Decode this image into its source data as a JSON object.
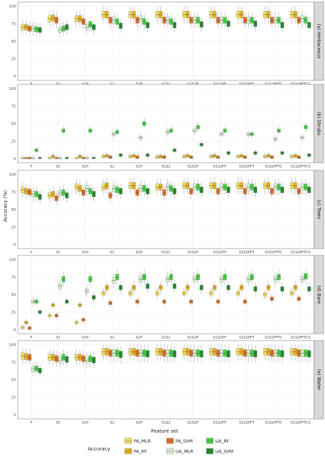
{
  "chart_data": {
    "type": "box",
    "xlabel": "Feature set",
    "ylabel": "Accuracy (%)",
    "ylim": [
      0,
      100
    ],
    "yticks": [
      0,
      25,
      50,
      75,
      100
    ],
    "categories": [
      "P",
      "S1",
      "S1P",
      "S2",
      "S2P",
      "S1S2",
      "S1S2P",
      "S1S2PF",
      "S1S2PFT",
      "S1S2PFTC",
      "S1S2PFTCS"
    ],
    "legend": {
      "title": "Accuracy",
      "position": "bottom",
      "entries": [
        "PA_MLR",
        "PA_SVM",
        "UA_RF",
        "PA_RF",
        "UA_MLR",
        "UA_SVM"
      ]
    },
    "series_colors": {
      "PA_MLR": "#f6e05a",
      "PA_RF": "#e8b21c",
      "PA_SVM": "#e06c1d",
      "UA_MLR": "#d7f0d2",
      "UA_RF": "#3ed43e",
      "UA_SVM": "#1e8c2a"
    },
    "series_order": [
      "PA_MLR",
      "PA_RF",
      "PA_SVM",
      "UA_MLR",
      "UA_RF",
      "UA_SVM"
    ],
    "grid": true,
    "facets": [
      {
        "label": "(a) Herbaceous",
        "medians": [
          [
            70,
            70,
            68,
            68,
            67,
            66
          ],
          [
            82,
            83,
            80,
            66,
            68,
            70
          ],
          [
            82,
            82,
            78,
            70,
            74,
            70
          ],
          [
            88,
            88,
            80,
            80,
            78,
            72
          ],
          [
            88,
            88,
            80,
            82,
            78,
            73
          ],
          [
            88,
            88,
            80,
            80,
            78,
            73
          ],
          [
            88,
            88,
            80,
            80,
            80,
            74
          ],
          [
            88,
            88,
            80,
            80,
            80,
            75
          ],
          [
            88,
            88,
            80,
            80,
            80,
            75
          ],
          [
            88,
            88,
            80,
            80,
            80,
            73
          ],
          [
            88,
            88,
            80,
            82,
            80,
            73
          ]
        ]
      },
      {
        "label": "(b) Shrubs",
        "medians": [
          [
            0,
            0,
            0,
            0,
            12,
            0
          ],
          [
            0,
            3,
            0,
            0,
            40,
            0
          ],
          [
            0,
            3,
            0,
            0,
            40,
            0
          ],
          [
            3,
            4,
            2,
            35,
            38,
            5
          ],
          [
            3,
            4,
            2,
            30,
            50,
            5
          ],
          [
            2,
            3,
            2,
            38,
            40,
            12
          ],
          [
            3,
            4,
            2,
            40,
            45,
            20
          ],
          [
            3,
            4,
            2,
            35,
            40,
            8
          ],
          [
            3,
            4,
            2,
            35,
            35,
            8
          ],
          [
            3,
            4,
            2,
            28,
            40,
            8
          ],
          [
            3,
            4,
            2,
            30,
            45,
            5
          ]
        ]
      },
      {
        "label": "(c) Trees",
        "medians": [
          [
            78,
            76,
            75,
            72,
            72,
            68
          ],
          [
            70,
            72,
            66,
            73,
            74,
            70
          ],
          [
            82,
            80,
            74,
            80,
            76,
            72
          ],
          [
            82,
            84,
            70,
            80,
            78,
            76
          ],
          [
            84,
            84,
            74,
            80,
            80,
            76
          ],
          [
            82,
            82,
            74,
            82,
            80,
            76
          ],
          [
            84,
            84,
            76,
            82,
            82,
            78
          ],
          [
            84,
            84,
            76,
            82,
            82,
            78
          ],
          [
            84,
            84,
            76,
            82,
            82,
            78
          ],
          [
            84,
            84,
            76,
            82,
            82,
            78
          ],
          [
            84,
            84,
            76,
            82,
            82,
            78
          ]
        ]
      },
      {
        "label": "(d) Bare",
        "medians": [
          [
            3,
            10,
            2,
            40,
            40,
            25
          ],
          [
            20,
            35,
            20,
            62,
            72,
            40
          ],
          [
            10,
            35,
            14,
            55,
            72,
            46
          ],
          [
            52,
            60,
            38,
            70,
            75,
            60
          ],
          [
            52,
            60,
            40,
            72,
            75,
            62
          ],
          [
            52,
            60,
            40,
            72,
            75,
            62
          ],
          [
            52,
            60,
            40,
            72,
            75,
            60
          ],
          [
            52,
            60,
            40,
            72,
            75,
            60
          ],
          [
            52,
            60,
            40,
            72,
            75,
            58
          ],
          [
            50,
            60,
            44,
            72,
            75,
            58
          ],
          [
            52,
            60,
            44,
            72,
            76,
            58
          ]
        ]
      },
      {
        "label": "(e) Water",
        "medians": [
          [
            84,
            83,
            82,
            65,
            66,
            63
          ],
          [
            82,
            82,
            80,
            78,
            82,
            79
          ],
          [
            82,
            82,
            80,
            78,
            80,
            78
          ],
          [
            90,
            90,
            88,
            88,
            88,
            86
          ],
          [
            90,
            90,
            88,
            88,
            88,
            87
          ],
          [
            90,
            90,
            88,
            88,
            88,
            87
          ],
          [
            90,
            90,
            88,
            88,
            88,
            87
          ],
          [
            90,
            90,
            88,
            88,
            88,
            87
          ],
          [
            90,
            90,
            88,
            88,
            88,
            87
          ],
          [
            90,
            90,
            88,
            88,
            88,
            87
          ],
          [
            90,
            90,
            88,
            88,
            88,
            87
          ]
        ]
      }
    ]
  }
}
